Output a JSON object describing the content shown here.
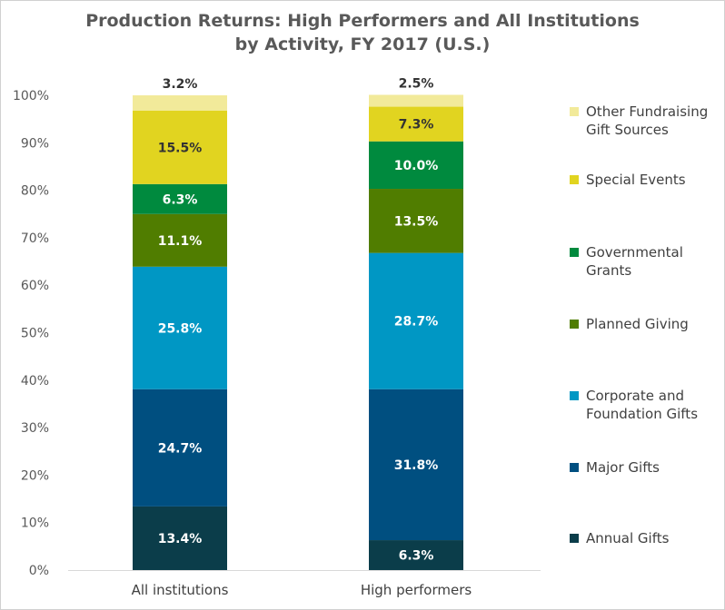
{
  "chart_data": {
    "type": "bar",
    "stacked": true,
    "title_lines": [
      "Production Returns: High Performers and All Institutions",
      "by Activity, FY 2017 (U.S.)"
    ],
    "xlabel": "",
    "ylabel": "",
    "ylim": [
      0,
      100
    ],
    "yticks": [
      "0%",
      "10%",
      "20%",
      "30%",
      "40%",
      "50%",
      "60%",
      "70%",
      "80%",
      "90%",
      "100%"
    ],
    "categories": [
      "All institutions",
      "High performers"
    ],
    "series": [
      {
        "name": "Annual Gifts",
        "legend_lines": [
          "Annual Gifts"
        ],
        "color": "#0b3d4a",
        "values": [
          13.4,
          6.3
        ],
        "labels": [
          "13.4%",
          "6.3%"
        ],
        "label_color": "#ffffff"
      },
      {
        "name": "Major Gifts",
        "legend_lines": [
          "Major Gifts"
        ],
        "color": "#004f80",
        "values": [
          24.7,
          31.8
        ],
        "labels": [
          "24.7%",
          "31.8%"
        ],
        "label_color": "#ffffff"
      },
      {
        "name": "Corporate and Foundation Gifts",
        "legend_lines": [
          "Corporate and",
          "Foundation Gifts"
        ],
        "color": "#0097c4",
        "values": [
          25.8,
          28.7
        ],
        "labels": [
          "25.8%",
          "28.7%"
        ],
        "label_color": "#ffffff"
      },
      {
        "name": "Planned Giving",
        "legend_lines": [
          "Planned Giving"
        ],
        "color": "#507d00",
        "values": [
          11.1,
          13.5
        ],
        "labels": [
          "11.1%",
          "13.5%"
        ],
        "label_color": "#ffffff"
      },
      {
        "name": "Governmental Grants",
        "legend_lines": [
          "Governmental",
          "Grants"
        ],
        "color": "#008a3e",
        "values": [
          6.3,
          10.0
        ],
        "labels": [
          "6.3%",
          "10.0%"
        ],
        "label_color": "#ffffff"
      },
      {
        "name": "Special Events",
        "legend_lines": [
          "Special Events"
        ],
        "color": "#e1d420",
        "values": [
          15.5,
          7.3
        ],
        "labels": [
          "15.5%",
          "7.3%"
        ],
        "label_color": "#333333"
      },
      {
        "name": "Other Fundraising Gift Sources",
        "legend_lines": [
          "Other Fundraising",
          "Gift Sources"
        ],
        "color": "#f2ea9a",
        "values": [
          3.2,
          2.5
        ],
        "labels": [
          "3.2%",
          "2.5%"
        ],
        "label_color": "#333333"
      }
    ],
    "grid": false,
    "legend_position": "right"
  }
}
